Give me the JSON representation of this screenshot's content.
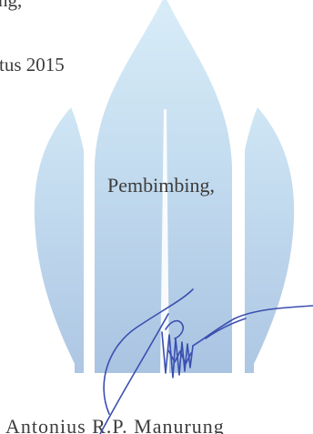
{
  "document": {
    "top_fragment": "ng,",
    "date_fragment": "tus 2015",
    "pembimbing_label": "Pembimbing,",
    "name_fragment": "Antonius R.P. Manurung"
  },
  "watermark": {
    "description_name": "university-flame-logo",
    "color_light": "#cfe4f2",
    "color_mid": "#b7d3ea",
    "color_deep": "#a7c1e0"
  },
  "signature": {
    "ink_color": "#3a4fb0"
  }
}
